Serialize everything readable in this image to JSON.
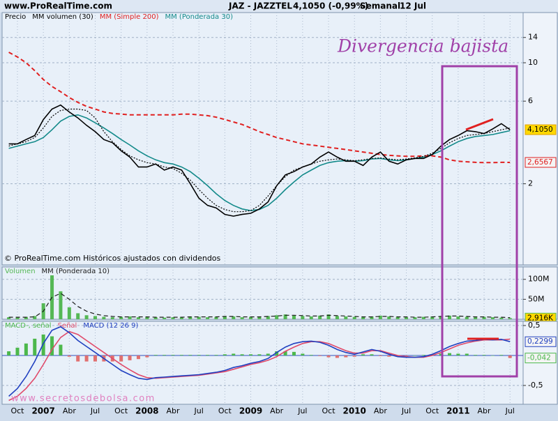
{
  "header": {
    "site": "www.ProRealTime.com",
    "symbol": "JAZ - JAZZTEL",
    "quote": "4,1050 (-0,99%)",
    "period": "Semanal",
    "date": "12 Jul"
  },
  "watermark": "www.secretosdebolsa.com",
  "chart_data": [
    {
      "type": "line",
      "title": "Precio",
      "log_scale": true,
      "grid": true,
      "ylim": [
        0.68,
        19.5
      ],
      "yticks": [
        2,
        6,
        10,
        14
      ],
      "annotations": [
        "© ProRealTime.com Históricos ajustados con dividendos",
        "Divergencia bajista"
      ],
      "series": [
        {
          "name": "MM (Ponderada 30)",
          "color": "#138a8a",
          "values": [
            3.2,
            3.3,
            3.4,
            3.5,
            3.7,
            4.1,
            4.6,
            4.9,
            5.0,
            4.8,
            4.5,
            4.2,
            3.9,
            3.6,
            3.35,
            3.1,
            2.9,
            2.75,
            2.65,
            2.6,
            2.5,
            2.35,
            2.15,
            1.95,
            1.75,
            1.6,
            1.5,
            1.43,
            1.4,
            1.42,
            1.5,
            1.65,
            1.85,
            2.05,
            2.25,
            2.4,
            2.55,
            2.65,
            2.7,
            2.72,
            2.7,
            2.72,
            2.78,
            2.8,
            2.75,
            2.72,
            2.75,
            2.8,
            2.85,
            2.95,
            3.1,
            3.3,
            3.5,
            3.65,
            3.75,
            3.8,
            3.85,
            3.95,
            4.05
          ]
        },
        {
          "name": "MM (Simple 200)",
          "color": "#e02020",
          "style": "dashed",
          "last_value_label": "2,6567",
          "label_fill": "#f4f4f4",
          "values": [
            11.5,
            10.8,
            10,
            9,
            8,
            7.3,
            6.8,
            6.3,
            5.9,
            5.6,
            5.4,
            5.2,
            5.1,
            5.05,
            5.0,
            5.0,
            5.0,
            5.0,
            5.0,
            5.0,
            5.05,
            5.05,
            5.0,
            4.95,
            4.85,
            4.7,
            4.55,
            4.4,
            4.2,
            4.0,
            3.85,
            3.7,
            3.6,
            3.5,
            3.4,
            3.35,
            3.3,
            3.25,
            3.2,
            3.15,
            3.1,
            3.05,
            3.0,
            2.95,
            2.92,
            2.9,
            2.88,
            2.88,
            2.9,
            2.9,
            2.85,
            2.75,
            2.7,
            2.68,
            2.66,
            2.65,
            2.65,
            2.66,
            2.6567
          ]
        },
        {
          "name": "MM volumen (30)",
          "color": "#000000",
          "style": "dotted",
          "values": [
            3.3,
            3.4,
            3.5,
            3.7,
            4.2,
            4.9,
            5.3,
            5.4,
            5.4,
            5.3,
            4.8,
            4.0,
            3.5,
            3.15,
            2.9,
            2.75,
            2.65,
            2.6,
            2.5,
            2.45,
            2.3,
            2.1,
            1.85,
            1.65,
            1.5,
            1.42,
            1.38,
            1.38,
            1.4,
            1.5,
            1.7,
            1.95,
            2.2,
            2.4,
            2.5,
            2.6,
            2.7,
            2.75,
            2.78,
            2.75,
            2.72,
            2.75,
            2.8,
            2.82,
            2.78,
            2.75,
            2.78,
            2.82,
            2.88,
            3.0,
            3.2,
            3.45,
            3.65,
            3.8,
            3.85,
            3.9,
            4.0,
            4.1,
            4.2
          ]
        },
        {
          "name": "Precio",
          "color": "#000000",
          "last_value_label": "4,1050",
          "label_fill": "#ffd800",
          "values": [
            3.4,
            3.4,
            3.6,
            3.8,
            4.7,
            5.4,
            5.7,
            5.2,
            4.8,
            4.35,
            4.0,
            3.6,
            3.45,
            3.1,
            2.85,
            2.5,
            2.5,
            2.6,
            2.4,
            2.5,
            2.4,
            2.0,
            1.65,
            1.5,
            1.45,
            1.33,
            1.3,
            1.33,
            1.35,
            1.43,
            1.57,
            1.95,
            2.25,
            2.35,
            2.5,
            2.6,
            2.85,
            3.05,
            2.85,
            2.7,
            2.7,
            2.55,
            2.85,
            3.05,
            2.7,
            2.6,
            2.75,
            2.8,
            2.8,
            2.95,
            3.3,
            3.6,
            3.8,
            4.05,
            4.0,
            3.9,
            4.15,
            4.45,
            4.105
          ]
        }
      ]
    },
    {
      "type": "bar",
      "ylim": [
        0,
        131
      ],
      "yticks": [
        {
          "value": 50,
          "label": "50M"
        },
        {
          "value": 100,
          "label": "100M"
        }
      ],
      "series": [
        {
          "name": "Volumen",
          "color": "#55b855",
          "type": "bar",
          "last_value_label": "2,916K",
          "label_fill": "#ffd800",
          "values": [
            5,
            4,
            6,
            8,
            40,
            110,
            70,
            30,
            15,
            10,
            8,
            6,
            5,
            6,
            7,
            5,
            6,
            5,
            4,
            5,
            6,
            7,
            6,
            5,
            6,
            8,
            7,
            5,
            6,
            7,
            8,
            10,
            12,
            9,
            8,
            7,
            9,
            12,
            8,
            7,
            6,
            6,
            7,
            9,
            7,
            6,
            5,
            5,
            6,
            7,
            8,
            9,
            7,
            6,
            5,
            6,
            5,
            4,
            2.916
          ]
        },
        {
          "name": "MM (Ponderada 10)",
          "color": "#1a1a1a",
          "type": "line",
          "style": "dashed",
          "values": [
            5,
            5,
            5,
            6,
            20,
            55,
            65,
            50,
            32,
            20,
            13,
            9,
            7,
            6,
            6,
            6,
            6,
            5,
            5,
            5,
            5,
            6,
            6,
            6,
            6,
            7,
            7,
            6,
            6,
            6,
            7,
            8,
            10,
            10,
            9,
            8,
            8,
            10,
            9,
            8,
            7,
            6,
            6,
            7,
            7,
            6,
            6,
            5,
            5,
            6,
            7,
            8,
            8,
            7,
            6,
            6,
            5,
            5,
            4
          ]
        }
      ]
    },
    {
      "type": "line",
      "ylim": [
        -0.814,
        0.57
      ],
      "yticks": [
        {
          "value": 0.5,
          "label": "0,5"
        },
        {
          "value": -0.5,
          "label": "-0,5"
        }
      ],
      "categories": [
        null,
        "Oct",
        null,
        null,
        "2007",
        null,
        null,
        "Abr",
        null,
        null,
        "Jul",
        null,
        null,
        "Oct",
        null,
        null,
        "2008",
        null,
        null,
        "Abr",
        null,
        null,
        "Jul",
        null,
        null,
        "Oct",
        null,
        null,
        "2009",
        null,
        null,
        "Abr",
        null,
        null,
        "Jul",
        null,
        null,
        "Oct",
        null,
        null,
        "2010",
        null,
        null,
        "Abr",
        null,
        null,
        "Jul",
        null,
        null,
        "Oct",
        null,
        null,
        "2011",
        null,
        null,
        "Abr",
        null,
        null,
        "Jul"
      ],
      "series": [
        {
          "name": "MACD-, señal",
          "color": "#4cb84c",
          "type": "bar",
          "last_value_label": "-0,042",
          "label_fill": "#f4f4f4",
          "values": [
            0.07,
            0.13,
            0.2,
            0.28,
            0.35,
            0.32,
            0.18,
            -0.02,
            -0.1,
            -0.1,
            -0.1,
            -0.1,
            -0.1,
            -0.1,
            -0.08,
            -0.06,
            -0.03,
            0.01,
            0.01,
            0.01,
            0.01,
            0.01,
            0.01,
            0.01,
            0.01,
            0.02,
            0.03,
            0.02,
            0.02,
            0.02,
            0.03,
            0.07,
            0.07,
            0.06,
            0.03,
            0.01,
            -0.01,
            -0.03,
            -0.04,
            -0.03,
            -0.02,
            0.02,
            0.02,
            -0.01,
            -0.02,
            -0.02,
            -0.01,
            0,
            0.01,
            0.02,
            0.03,
            0.04,
            0.03,
            0.03,
            0.01,
            0.01,
            0,
            0.01,
            -0.042
          ]
        },
        {
          "name": "Señal",
          "color": "#e04a6a",
          "type": "line",
          "values": [
            -0.75,
            -0.68,
            -0.55,
            -0.38,
            -0.15,
            0.1,
            0.3,
            0.4,
            0.35,
            0.25,
            0.15,
            0.05,
            -0.05,
            -0.15,
            -0.24,
            -0.32,
            -0.37,
            -0.38,
            -0.37,
            -0.36,
            -0.35,
            -0.34,
            -0.33,
            -0.31,
            -0.29,
            -0.27,
            -0.23,
            -0.19,
            -0.15,
            -0.12,
            -0.08,
            -0.02,
            0.07,
            0.14,
            0.2,
            0.23,
            0.23,
            0.2,
            0.14,
            0.08,
            0.04,
            0.04,
            0.08,
            0.08,
            0.04,
            0.0,
            -0.02,
            -0.03,
            -0.03,
            0.0,
            0.05,
            0.11,
            0.17,
            0.21,
            0.24,
            0.26,
            0.26,
            0.26,
            0.2719
          ]
        },
        {
          "name": "MACD (12 26 9)",
          "color": "#2040c0",
          "type": "line",
          "last_value_label": "0,2299",
          "label_fill": "#f4f4f4",
          "values": [
            -0.68,
            -0.55,
            -0.35,
            -0.1,
            0.2,
            0.42,
            0.48,
            0.38,
            0.25,
            0.15,
            0.05,
            -0.05,
            -0.15,
            -0.25,
            -0.32,
            -0.38,
            -0.4,
            -0.37,
            -0.36,
            -0.35,
            -0.34,
            -0.33,
            -0.32,
            -0.3,
            -0.28,
            -0.25,
            -0.2,
            -0.17,
            -0.13,
            -0.1,
            -0.05,
            0.05,
            0.14,
            0.2,
            0.23,
            0.24,
            0.22,
            0.17,
            0.1,
            0.05,
            0.02,
            0.06,
            0.1,
            0.07,
            0.02,
            -0.02,
            -0.03,
            -0.03,
            -0.02,
            0.02,
            0.08,
            0.15,
            0.2,
            0.24,
            0.25,
            0.27,
            0.26,
            0.27,
            0.2299
          ]
        }
      ]
    }
  ]
}
